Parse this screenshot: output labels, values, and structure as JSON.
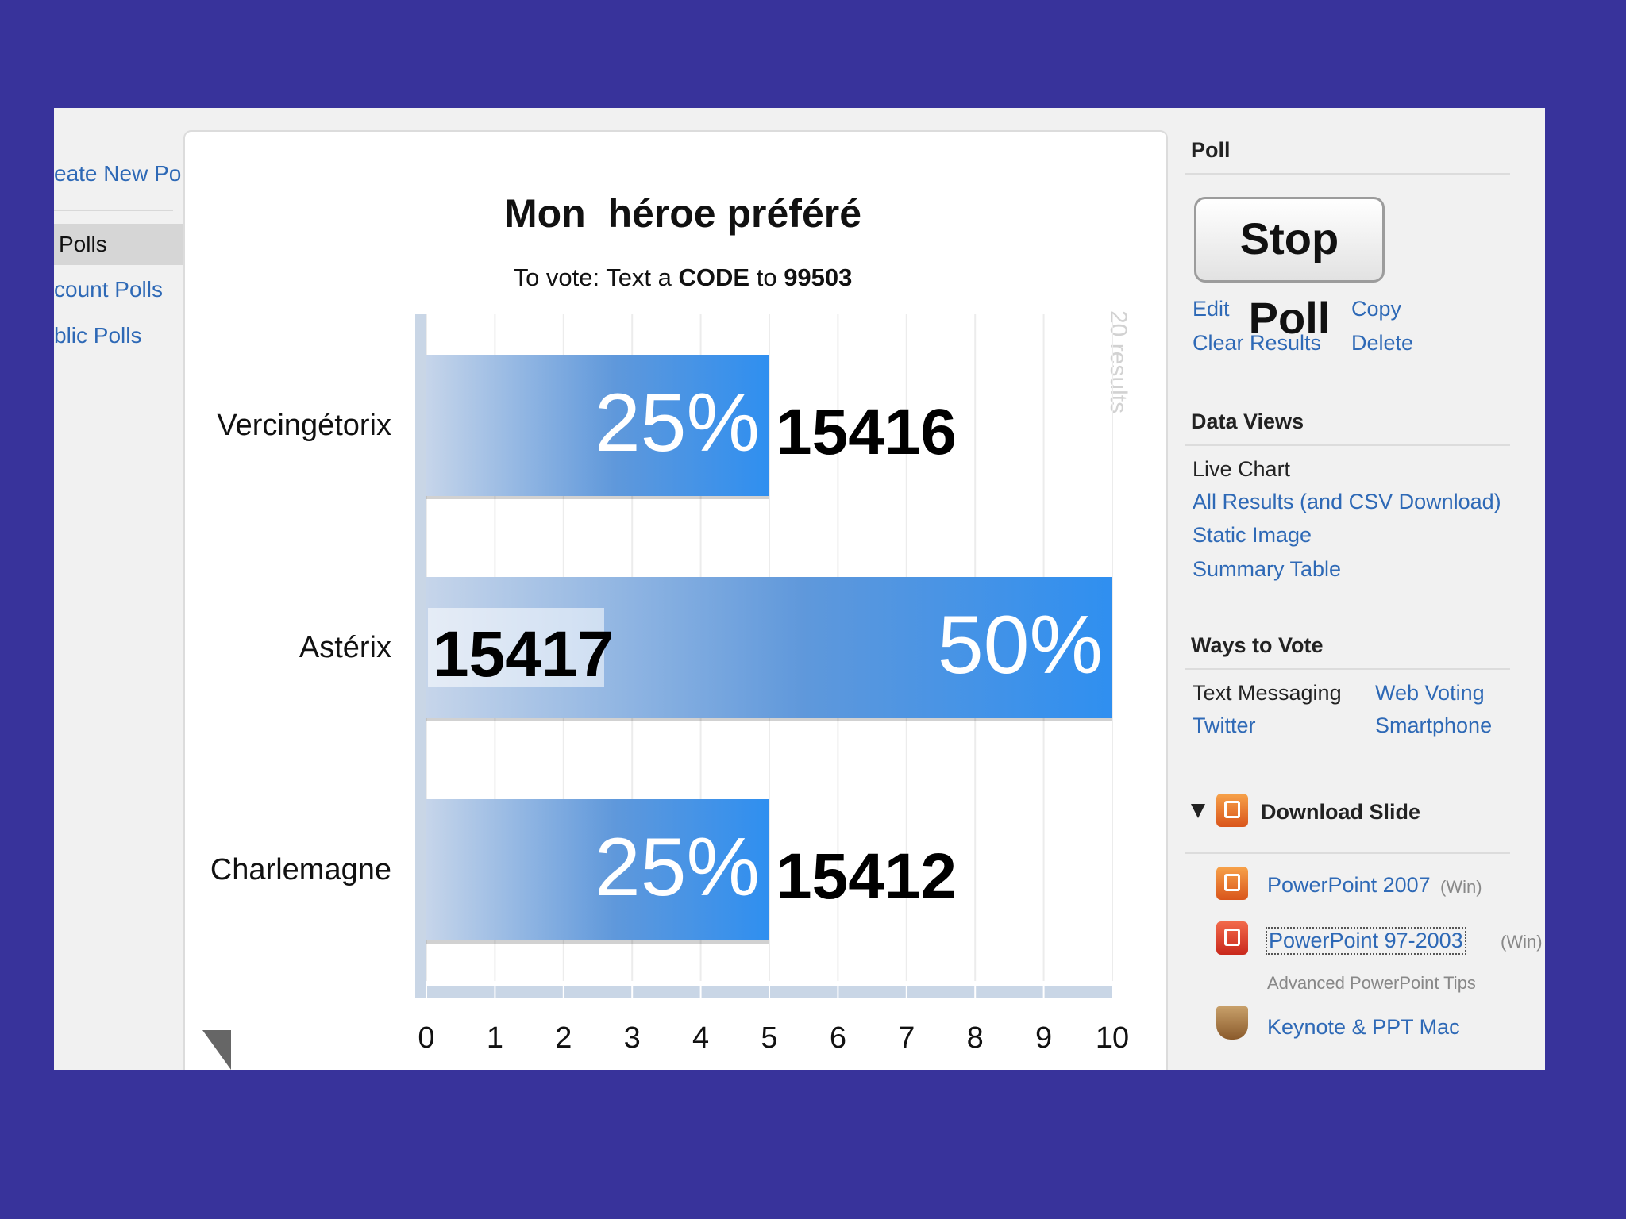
{
  "leftnav": {
    "create": "eate New Poll",
    "polls": "Polls",
    "account": "count Polls",
    "public": "blic Polls"
  },
  "chart_data": {
    "type": "bar",
    "orientation": "horizontal",
    "title": "Mon  héroe préféré",
    "subtitle": {
      "prefix": "To vote: Text a ",
      "keyword": "CODE",
      "middle": " to ",
      "number": "99503"
    },
    "categories": [
      "Vercingétorix",
      "Astérix",
      "Charlemagne"
    ],
    "values": [
      5,
      10,
      5
    ],
    "percent_labels": [
      "25%",
      "50%",
      "25%"
    ],
    "codes": [
      "15416",
      "15417",
      "15412"
    ],
    "xlim": [
      0,
      10
    ],
    "xticks": [
      "0",
      "1",
      "2",
      "3",
      "4",
      "5",
      "6",
      "7",
      "8",
      "9",
      "10"
    ],
    "side_label": "20 results",
    "bar_color": "#2f8ff0",
    "grid": true
  },
  "right": {
    "poll_heading": "Poll",
    "stop_button": "Stop Poll",
    "edit": "Edit",
    "copy": "Copy",
    "clear_results": "Clear Results",
    "delete": "Delete",
    "data_views_heading": "Data Views",
    "live_chart": "Live Chart",
    "all_results": "All Results (and CSV Download)",
    "static_image": "Static Image",
    "summary_table": "Summary Table",
    "ways_heading": "Ways to Vote",
    "text_messaging": "Text Messaging",
    "web_voting": "Web Voting",
    "twitter": "Twitter",
    "smartphone": "Smartphone",
    "download_heading": "Download Slide",
    "ppt2007": "PowerPoint 2007",
    "ppt2007_os": "(Win)",
    "ppt9703": "PowerPoint 97-2003",
    "ppt9703_os": "(Win)",
    "advanced_tips": "Advanced PowerPoint Tips",
    "keynote": "Keynote & PPT Mac"
  }
}
